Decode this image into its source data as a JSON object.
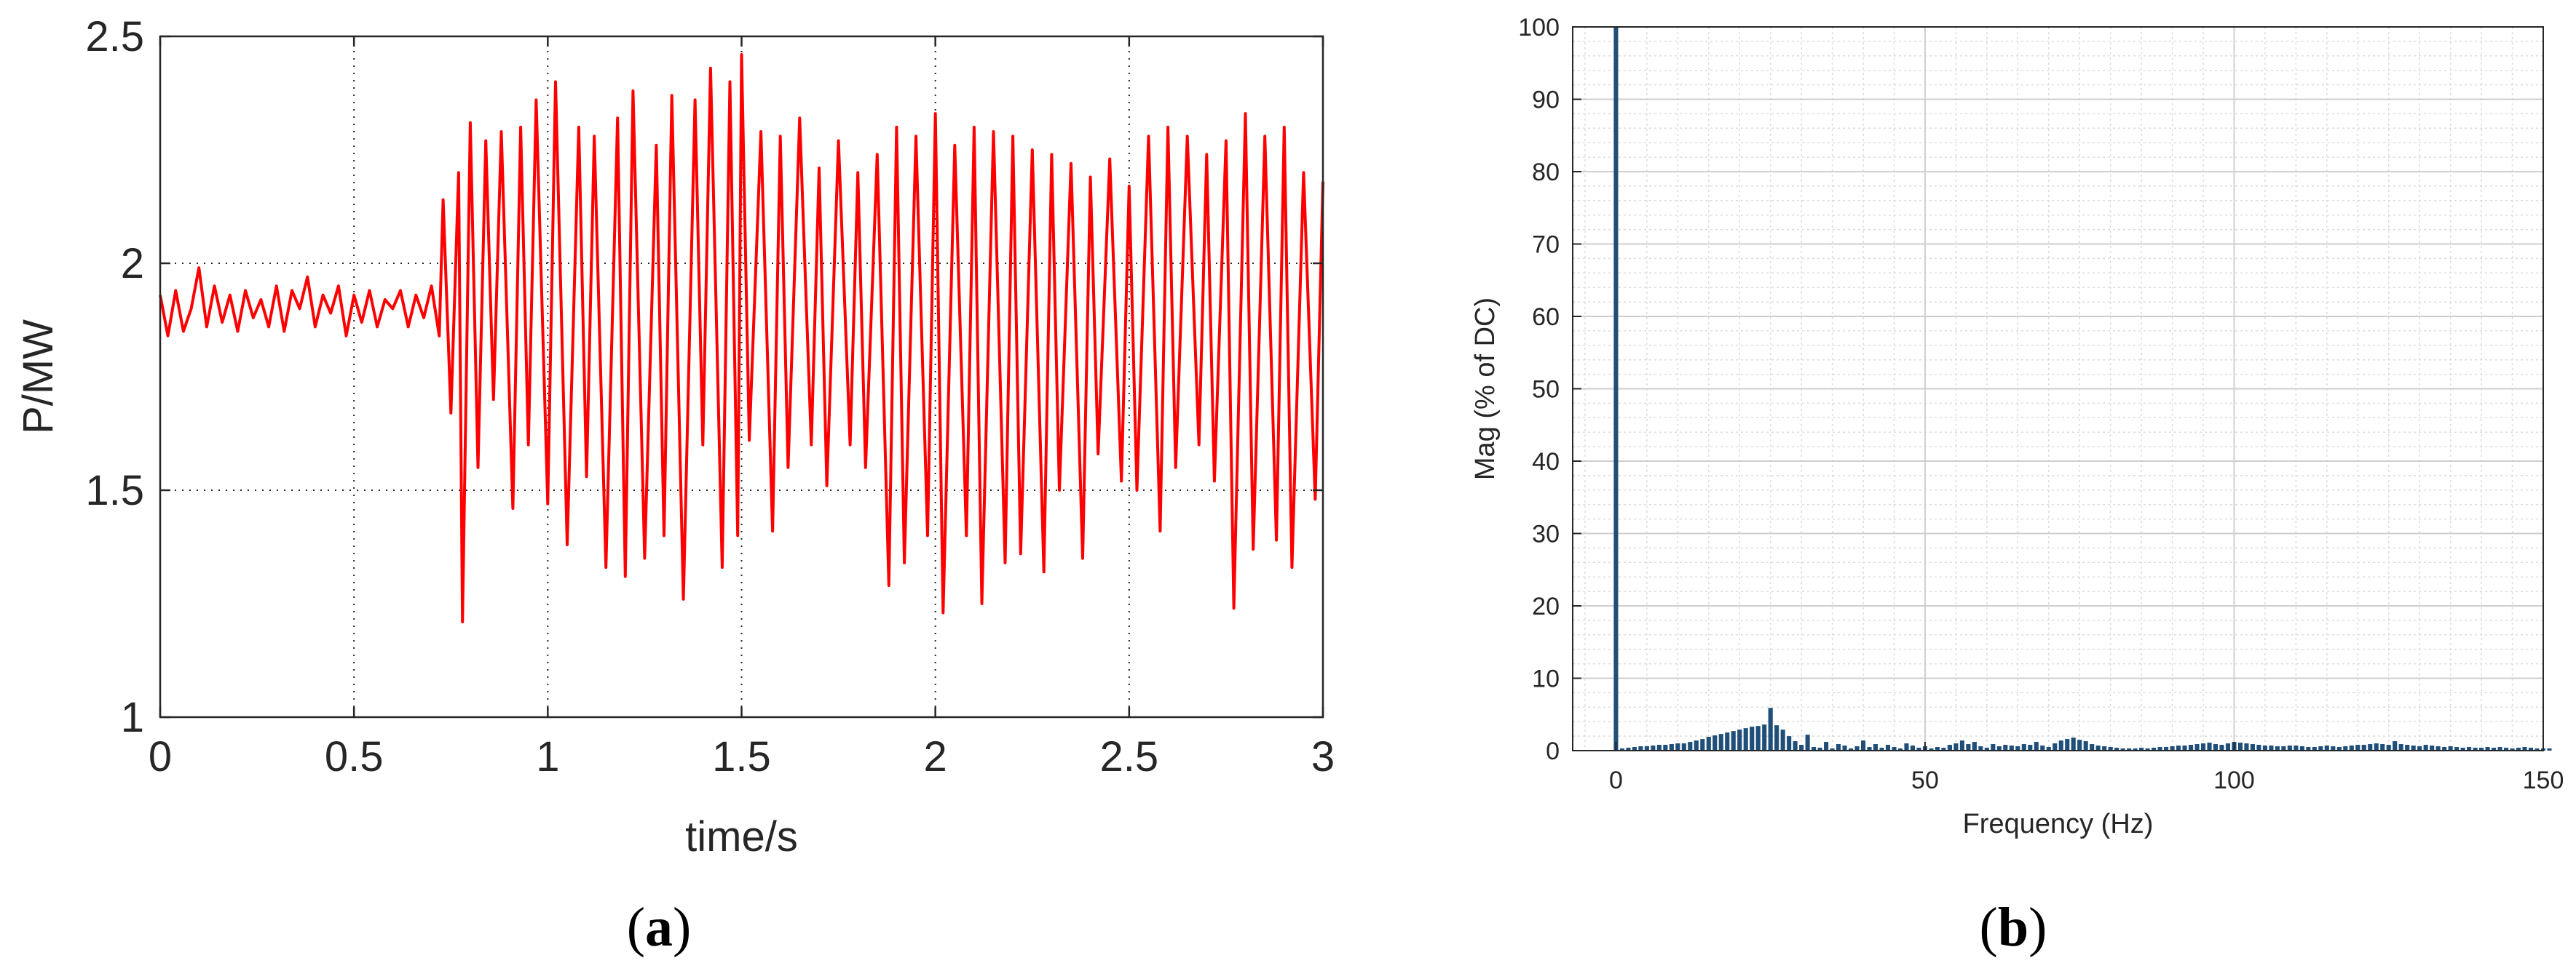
{
  "chart_data": [
    {
      "type": "line",
      "caption": "(a)",
      "caption_letter": "a",
      "xlabel": "time/s",
      "ylabel": "P/MW",
      "xlim": [
        0,
        3
      ],
      "ylim": [
        1,
        2.5
      ],
      "xticks": [
        0,
        0.5,
        1,
        1.5,
        2,
        2.5,
        3
      ],
      "xtick_labels": [
        "0",
        "0.5",
        "1",
        "1.5",
        "2",
        "2.5",
        "3"
      ],
      "yticks": [
        1,
        1.5,
        2,
        2.5
      ],
      "ytick_labels": [
        "1",
        "1.5",
        "2",
        "2.5"
      ],
      "grid": "dotted",
      "series": [
        {
          "color": "#ff0000",
          "x": [
            0.0,
            0.02,
            0.04,
            0.06,
            0.08,
            0.1,
            0.12,
            0.14,
            0.16,
            0.18,
            0.2,
            0.22,
            0.24,
            0.26,
            0.28,
            0.3,
            0.32,
            0.34,
            0.36,
            0.38,
            0.4,
            0.42,
            0.44,
            0.46,
            0.48,
            0.5,
            0.52,
            0.54,
            0.56,
            0.58,
            0.6,
            0.62,
            0.64,
            0.66,
            0.68,
            0.7,
            0.72,
            0.73,
            0.75,
            0.77,
            0.78,
            0.8,
            0.82,
            0.84,
            0.86,
            0.88,
            0.91,
            0.93,
            0.95,
            0.97,
            1.0,
            1.02,
            1.05,
            1.08,
            1.1,
            1.12,
            1.15,
            1.18,
            1.2,
            1.22,
            1.25,
            1.28,
            1.3,
            1.32,
            1.35,
            1.38,
            1.4,
            1.42,
            1.45,
            1.47,
            1.49,
            1.5,
            1.52,
            1.55,
            1.58,
            1.6,
            1.62,
            1.65,
            1.68,
            1.7,
            1.72,
            1.75,
            1.78,
            1.8,
            1.82,
            1.85,
            1.88,
            1.9,
            1.92,
            1.95,
            1.98,
            2.0,
            2.02,
            2.05,
            2.08,
            2.1,
            2.12,
            2.15,
            2.18,
            2.2,
            2.22,
            2.25,
            2.28,
            2.3,
            2.32,
            2.35,
            2.38,
            2.4,
            2.42,
            2.45,
            2.48,
            2.5,
            2.52,
            2.55,
            2.58,
            2.6,
            2.62,
            2.65,
            2.68,
            2.7,
            2.72,
            2.75,
            2.77,
            2.8,
            2.82,
            2.85,
            2.88,
            2.9,
            2.92,
            2.95,
            2.98,
            3.0
          ],
          "y": [
            1.93,
            1.84,
            1.94,
            1.85,
            1.9,
            1.99,
            1.86,
            1.95,
            1.87,
            1.93,
            1.85,
            1.94,
            1.88,
            1.92,
            1.86,
            1.95,
            1.85,
            1.94,
            1.9,
            1.97,
            1.86,
            1.93,
            1.89,
            1.95,
            1.84,
            1.93,
            1.87,
            1.94,
            1.86,
            1.92,
            1.9,
            1.94,
            1.86,
            1.93,
            1.88,
            1.95,
            1.84,
            2.14,
            1.67,
            2.2,
            1.21,
            2.31,
            1.55,
            2.27,
            1.7,
            2.29,
            1.46,
            2.3,
            1.6,
            2.36,
            1.47,
            2.4,
            1.38,
            2.3,
            1.53,
            2.28,
            1.33,
            2.32,
            1.31,
            2.38,
            1.35,
            2.26,
            1.4,
            2.37,
            1.26,
            2.36,
            1.6,
            2.43,
            1.33,
            2.4,
            1.4,
            2.46,
            1.61,
            2.29,
            1.41,
            2.28,
            1.55,
            2.32,
            1.6,
            2.21,
            1.51,
            2.27,
            1.6,
            2.2,
            1.55,
            2.24,
            1.29,
            2.3,
            1.34,
            2.28,
            1.4,
            2.33,
            1.23,
            2.26,
            1.4,
            2.3,
            1.25,
            2.29,
            1.34,
            2.28,
            1.36,
            2.25,
            1.32,
            2.24,
            1.5,
            2.22,
            1.35,
            2.19,
            1.58,
            2.23,
            1.52,
            2.17,
            1.5,
            2.28,
            1.41,
            2.3,
            1.55,
            2.28,
            1.6,
            2.24,
            1.52,
            2.27,
            1.24,
            2.33,
            1.37,
            2.28,
            1.39,
            2.3,
            1.33,
            2.2,
            1.48,
            2.18
          ]
        }
      ]
    },
    {
      "type": "bar",
      "caption": "(b)",
      "caption_letter": "b",
      "xlabel": "Frequency (Hz)",
      "ylabel": "Mag (% of DC)",
      "xlim": [
        -7,
        150
      ],
      "ylim": [
        0,
        100
      ],
      "xticks": [
        0,
        50,
        100,
        150
      ],
      "xtick_labels": [
        "0",
        "50",
        "100",
        "150"
      ],
      "yticks": [
        0,
        10,
        20,
        30,
        40,
        50,
        60,
        70,
        80,
        90,
        100
      ],
      "ytick_labels": [
        "0",
        "10",
        "20",
        "30",
        "40",
        "50",
        "60",
        "70",
        "80",
        "90",
        "100"
      ],
      "grid": "on",
      "bar_color": "#1f4e79",
      "bar_step_hz": 1,
      "x_start_hz": 0,
      "values": [
        100,
        0.3,
        0.4,
        0.5,
        0.6,
        0.6,
        0.7,
        0.8,
        0.8,
        0.9,
        1.0,
        1.0,
        1.2,
        1.4,
        1.6,
        1.9,
        2.1,
        2.3,
        2.5,
        2.7,
        2.9,
        3.1,
        3.3,
        3.4,
        3.6,
        5.9,
        3.5,
        2.9,
        2.0,
        1.3,
        0.8,
        2.2,
        0.5,
        0.4,
        1.2,
        0.3,
        0.9,
        0.7,
        0.3,
        0.6,
        1.4,
        0.5,
        0.9,
        0.4,
        0.8,
        0.5,
        0.3,
        1.0,
        0.7,
        0.4,
        0.6,
        0.3,
        0.5,
        0.4,
        0.8,
        1.0,
        1.4,
        0.9,
        1.2,
        0.6,
        0.4,
        0.9,
        0.6,
        0.8,
        0.7,
        0.6,
        0.9,
        0.8,
        1.2,
        0.7,
        0.5,
        1.0,
        1.4,
        1.6,
        1.8,
        1.5,
        1.3,
        0.9,
        0.7,
        0.6,
        0.5,
        0.4,
        0.3,
        0.3,
        0.3,
        0.4,
        0.3,
        0.4,
        0.5,
        0.5,
        0.6,
        0.7,
        0.7,
        0.8,
        0.9,
        1.0,
        1.1,
        0.9,
        0.8,
        1.0,
        1.2,
        1.1,
        1.0,
        0.9,
        0.8,
        0.7,
        0.7,
        0.6,
        0.6,
        0.7,
        0.7,
        0.6,
        0.5,
        0.5,
        0.6,
        0.7,
        0.6,
        0.5,
        0.6,
        0.7,
        0.8,
        0.8,
        0.9,
        1.0,
        0.9,
        0.8,
        1.3,
        0.9,
        0.8,
        0.7,
        0.6,
        0.8,
        0.7,
        0.6,
        0.5,
        0.6,
        0.5,
        0.4,
        0.5,
        0.4,
        0.4,
        0.5,
        0.4,
        0.5,
        0.4,
        0.3,
        0.4,
        0.5,
        0.4,
        0.3,
        0.3,
        0.3
      ]
    }
  ]
}
